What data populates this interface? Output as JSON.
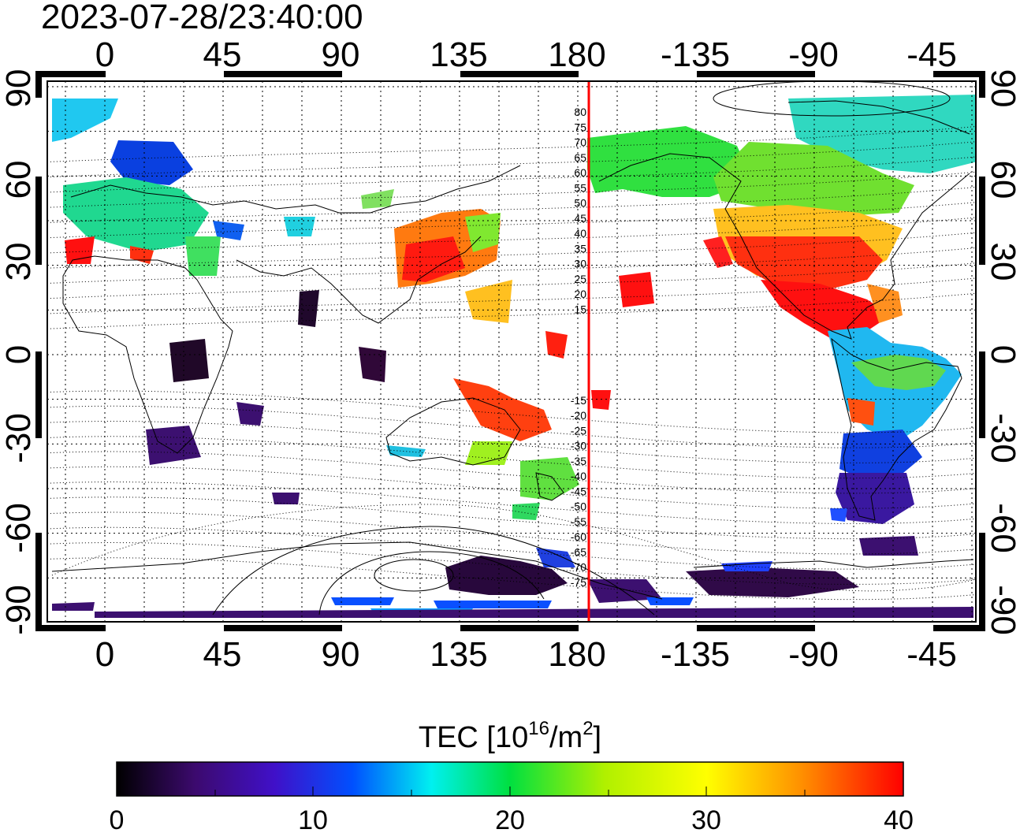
{
  "timestamp": "2023-07-28/23:40:00",
  "map": {
    "x_ticks": [
      "0",
      "45",
      "90",
      "135",
      "180",
      "-135",
      "-90",
      "-45"
    ],
    "y_ticks": [
      "90",
      "60",
      "30",
      "0",
      "-30",
      "-60",
      "-90"
    ],
    "magnetic_lat_labels": [
      "80",
      "75",
      "70",
      "65",
      "60",
      "55",
      "50",
      "45",
      "40",
      "35",
      "30",
      "25",
      "20",
      "15",
      "-15",
      "-20",
      "-25",
      "-30",
      "-35",
      "-40",
      "-45",
      "-50",
      "-55",
      "-60",
      "-65",
      "-70",
      "-75"
    ],
    "colors": {
      "frame": "#000000",
      "grid": "#000000",
      "meridian": "#ff0000",
      "coast": "#000000"
    }
  },
  "colorbar": {
    "label_main": "TEC  [10",
    "label_sup1": "16",
    "label_mid": "/m",
    "label_sup2": "2",
    "label_end": "]",
    "ticks": [
      "0",
      "10",
      "20",
      "30",
      "40"
    ],
    "range": [
      0,
      40
    ],
    "colormap": [
      "#000000",
      "#3c0a6e",
      "#4010c8",
      "#0050ff",
      "#00f0f0",
      "#00e040",
      "#b0f000",
      "#ffff00",
      "#ff9000",
      "#ff0000"
    ]
  }
}
